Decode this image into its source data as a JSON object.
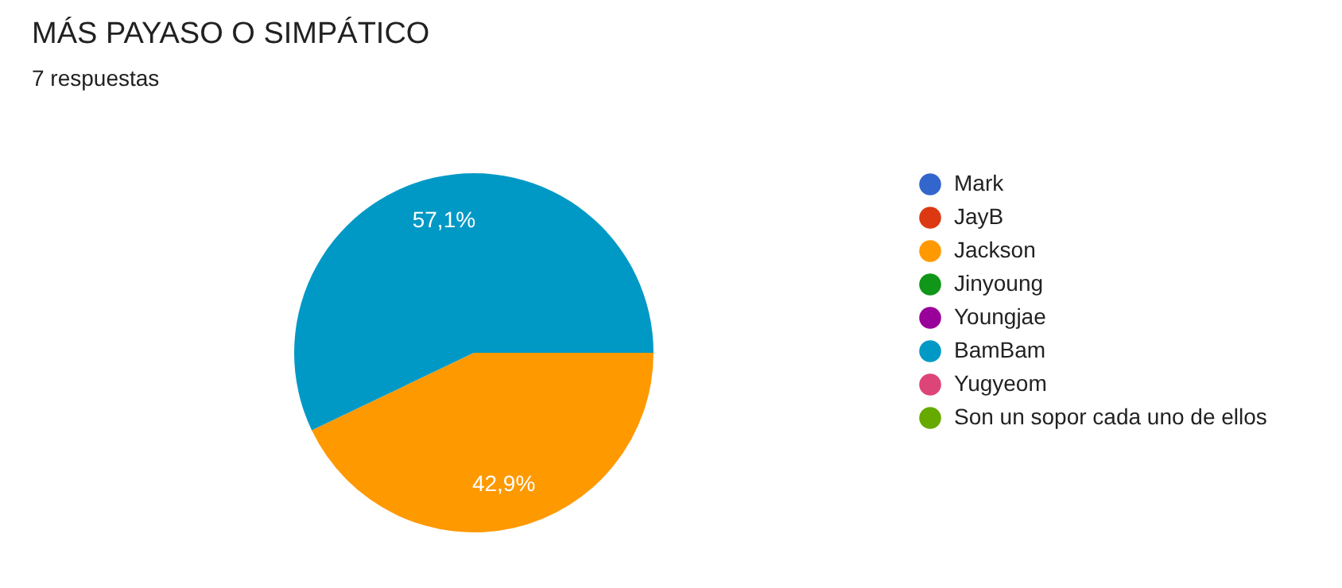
{
  "chart_data": {
    "type": "pie",
    "title": "MÁS PAYASO O SIMPÁTICO",
    "subtitle": "7 respuestas",
    "categories": [
      "Mark",
      "JayB",
      "Jackson",
      "Jinyoung",
      "Youngjae",
      "BamBam",
      "Yugyeom",
      "Son un sopor cada uno de ellos"
    ],
    "values": [
      0,
      0,
      42.9,
      0,
      0,
      57.1,
      0,
      0
    ],
    "colors": [
      "#3366cc",
      "#dc3912",
      "#ff9900",
      "#109618",
      "#990099",
      "#0099c6",
      "#dd4477",
      "#66aa00"
    ],
    "value_labels": [
      null,
      null,
      "42,9%",
      null,
      null,
      "57,1%",
      null,
      null
    ],
    "legend": "right"
  }
}
